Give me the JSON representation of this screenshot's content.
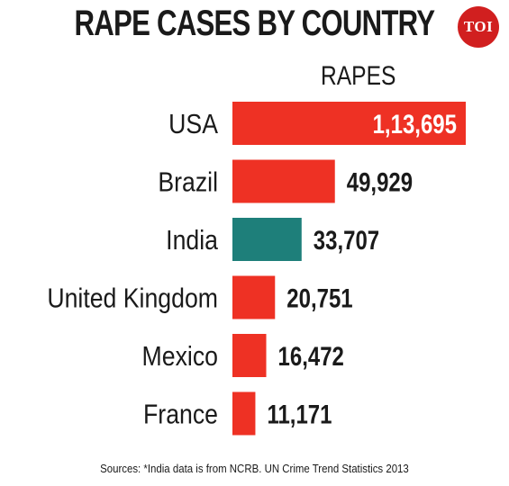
{
  "header": {
    "title": "RAPE CASES BY COUNTRY",
    "logo_text": "TOI"
  },
  "chart_data": {
    "type": "bar",
    "orientation": "horizontal",
    "column_header": "RAPES",
    "categories": [
      "USA",
      "Brazil",
      "India",
      "United Kingdom",
      "Mexico",
      "France"
    ],
    "values": [
      113695,
      49929,
      33707,
      20751,
      16472,
      11171
    ],
    "value_labels": [
      "1,13,695",
      "49,929",
      "33,707",
      "20,751",
      "16,472",
      "11,171"
    ],
    "bar_colors": [
      "#ee3124",
      "#ee3124",
      "#1e7f7a",
      "#ee3124",
      "#ee3124",
      "#ee3124"
    ],
    "xlim": [
      0,
      113695
    ],
    "grid": false,
    "legend": "none"
  },
  "footer": {
    "source": "Sources: *India data is from NCRB. UN Crime Trend Statistics 2013"
  },
  "colors": {
    "bar_default": "#ee3124",
    "bar_highlight": "#1e7f7a",
    "logo_bg": "#d11f1f",
    "text": "#1a1a1a"
  }
}
